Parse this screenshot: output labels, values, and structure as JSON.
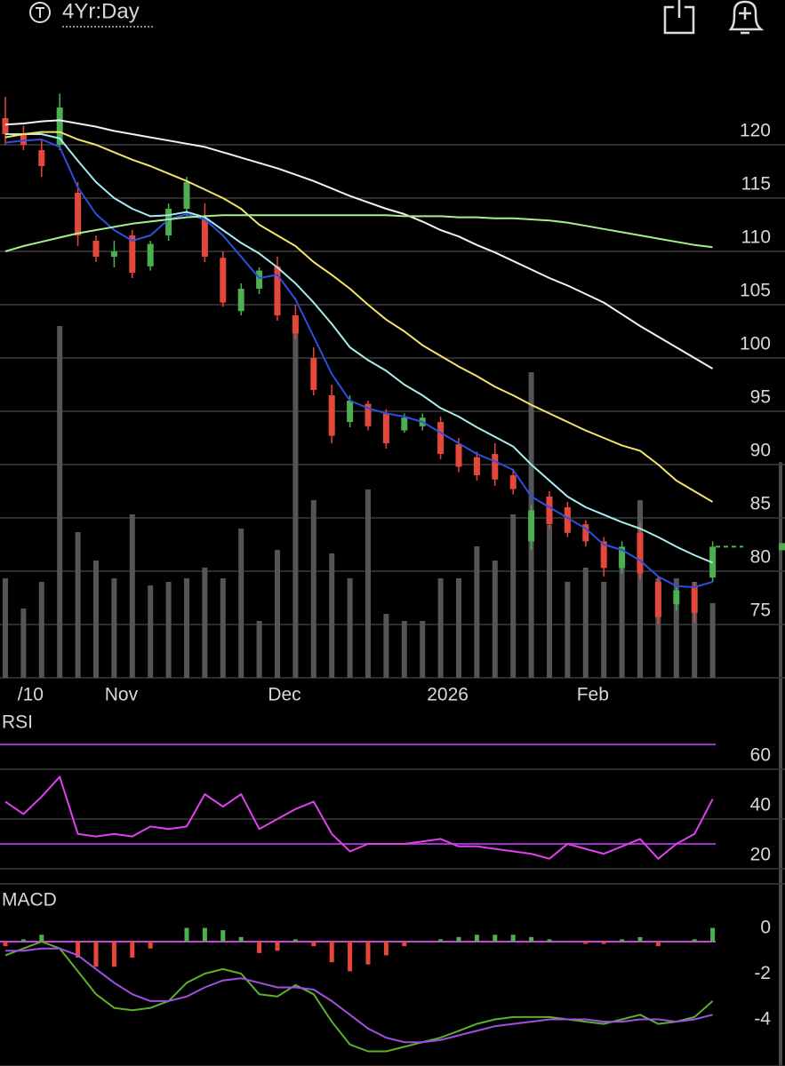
{
  "header": {
    "title": "4Yr:Day"
  },
  "chart_data": [
    {
      "type": "candlestick",
      "categories": [
        null,
        "/10",
        null,
        null,
        null,
        null,
        "Nov",
        null,
        null,
        null,
        null,
        null,
        null,
        null,
        null,
        "Dec",
        null,
        null,
        null,
        null,
        null,
        null,
        null,
        null,
        "2026",
        null,
        null,
        null,
        null,
        null,
        null,
        null,
        "Feb",
        null,
        null,
        null,
        null,
        null,
        null,
        null
      ],
      "open": [
        122.5,
        121,
        119.5,
        120,
        115.5,
        111,
        109.5,
        111.5,
        108.6,
        111.5,
        114,
        113,
        109.4,
        104.4,
        106.5,
        108.6,
        104,
        100,
        96.5,
        94,
        95.7,
        94.8,
        93.2,
        93.6,
        94,
        91.9,
        90.7,
        91,
        89,
        82.8,
        87,
        86,
        84.4,
        82.8,
        80.3,
        83.6,
        79,
        76.9,
        78.6,
        79.4
      ],
      "high": [
        124.5,
        121.8,
        120.5,
        124.8,
        116.5,
        111.5,
        111,
        112,
        111,
        114.5,
        117,
        114.5,
        110,
        107,
        108.5,
        109.5,
        105,
        101,
        97.5,
        96.5,
        96,
        95.2,
        94.8,
        94.8,
        94.5,
        92.5,
        91.2,
        92,
        89.6,
        86.2,
        87.5,
        86.5,
        84.8,
        83.2,
        82.8,
        84.5,
        79.5,
        78.5,
        79,
        82.8
      ],
      "low": [
        120,
        119.5,
        117,
        119.5,
        110.5,
        109,
        108.5,
        107.5,
        108.2,
        111,
        113.3,
        109,
        104.8,
        104,
        106,
        103.5,
        101.8,
        96.5,
        92,
        93.5,
        93.2,
        91.5,
        93,
        93.2,
        90.5,
        89.3,
        88.5,
        88,
        87.2,
        82,
        84,
        83.2,
        82.3,
        79.5,
        79.8,
        79.2,
        75,
        76.3,
        75.2,
        79
      ],
      "close": [
        121,
        120,
        118,
        123.5,
        111.5,
        109.5,
        110,
        108,
        110.7,
        114,
        116.5,
        109.5,
        105.2,
        106.5,
        108.2,
        104,
        102.3,
        97,
        92.7,
        96,
        93.6,
        92,
        94.4,
        94.4,
        91,
        89.8,
        89,
        88.6,
        87.7,
        85.7,
        84.4,
        83.6,
        82.8,
        80.3,
        82.3,
        79.8,
        75.7,
        78.2,
        76.1,
        82.3
      ],
      "up_color": "#4caf50",
      "down_color": "#e5473b",
      "volume": [
        28,
        19.5,
        27,
        99,
        41,
        33,
        28,
        46,
        26,
        27,
        28,
        31,
        28,
        42,
        16,
        36,
        98,
        50,
        35,
        28,
        53,
        18,
        16,
        16,
        28,
        28,
        37,
        33,
        46,
        86,
        43,
        27,
        31,
        27,
        31,
        50,
        28,
        28,
        27,
        21
      ],
      "volume_color": "#555555",
      "vlim": [
        0,
        100
      ],
      "series": [
        {
          "color": "#2f4fe0",
          "values": [
            120.2,
            120.4,
            120.5,
            119.8,
            116,
            113.5,
            112,
            111,
            111.5,
            113,
            113.5,
            113,
            111.5,
            109.5,
            107.5,
            107.8,
            105.5,
            102,
            98.5,
            96,
            95.3,
            94.8,
            94.5,
            94,
            93,
            92,
            91,
            90.3,
            89.5,
            87,
            86,
            85,
            84,
            82.5,
            82,
            81,
            79.5,
            78.6,
            78.5,
            79
          ]
        },
        {
          "color": "#a8ecf0",
          "values": [
            121,
            121,
            121,
            120.6,
            118.5,
            116.5,
            115,
            114,
            113.3,
            113.4,
            113.7,
            113.2,
            112,
            110.8,
            109.8,
            108.5,
            107,
            105.2,
            103.2,
            101,
            99.8,
            98.8,
            97.5,
            96.5,
            95.3,
            94.5,
            93.5,
            92.6,
            91.7,
            90,
            88.5,
            87,
            86,
            85.3,
            84.6,
            84,
            83.2,
            82.3,
            81.5,
            80.8
          ]
        },
        {
          "color": "#f3e36a",
          "values": [
            120.7,
            121,
            121.2,
            121.2,
            120.5,
            120,
            119.3,
            118.6,
            118,
            117.3,
            116.6,
            115.8,
            115,
            114,
            112.5,
            111.5,
            110.5,
            109,
            107.8,
            106.5,
            105,
            103.6,
            102.5,
            101.2,
            100.2,
            99.2,
            98.3,
            97.3,
            96.5,
            95.6,
            94.8,
            94,
            93.2,
            92.5,
            91.8,
            91.3,
            90,
            88.5,
            87.5,
            86.5
          ]
        },
        {
          "color": "#f2f2f2",
          "values": [
            121.9,
            122,
            122.2,
            122.3,
            122,
            121.7,
            121.3,
            121,
            120.7,
            120.4,
            120.1,
            119.8,
            119.3,
            118.8,
            118.3,
            117.8,
            117.2,
            116.6,
            115.9,
            115.2,
            114.6,
            114,
            113.5,
            112.8,
            112,
            111.4,
            110.6,
            109.9,
            109.1,
            108.3,
            107.5,
            106.8,
            106,
            105.2,
            104.1,
            103,
            102,
            101,
            100,
            99
          ]
        },
        {
          "color": "#a6ee8e",
          "values": [
            110,
            110.5,
            110.9,
            111.3,
            111.7,
            112,
            112.3,
            112.6,
            112.8,
            113,
            113.2,
            113.3,
            113.4,
            113.4,
            113.4,
            113.4,
            113.4,
            113.4,
            113.4,
            113.4,
            113.4,
            113.4,
            113.3,
            113.3,
            113.3,
            113.2,
            113.2,
            113.1,
            113.1,
            113,
            112.9,
            112.7,
            112.4,
            112.1,
            111.8,
            111.5,
            111.2,
            110.9,
            110.6,
            110.4
          ]
        }
      ],
      "ylim": [
        70,
        125
      ],
      "yticks": [
        75,
        80,
        85,
        90,
        95,
        100,
        105,
        110,
        115,
        120
      ],
      "grid": true
    },
    {
      "type": "line",
      "title": "RSI",
      "series": [
        {
          "color": "#e040f0",
          "values": [
            47,
            42,
            49,
            57,
            34,
            33,
            34,
            33,
            37,
            36,
            37,
            50,
            45,
            50,
            36,
            40,
            44,
            47,
            34,
            27,
            30,
            30,
            30,
            31,
            32,
            29,
            29,
            28,
            27,
            26,
            24,
            30,
            28,
            26,
            29,
            32,
            24,
            30,
            34,
            48
          ]
        }
      ],
      "hlines": [
        70,
        30
      ],
      "hline_color": "#a030c8",
      "ylim": [
        13.9,
        83.6
      ],
      "yticks": [
        60,
        40,
        20
      ],
      "grid": true
    },
    {
      "type": "macd",
      "title": "MACD",
      "series": [
        {
          "color": "#5cb030",
          "values": [
            -0.6,
            -0.3,
            0,
            -0.3,
            -1.3,
            -2.3,
            -2.9,
            -3,
            -2.9,
            -2.6,
            -1.8,
            -1.4,
            -1.2,
            -1.4,
            -2.3,
            -2.4,
            -1.9,
            -2.3,
            -3.5,
            -4.5,
            -4.8,
            -4.8,
            -4.6,
            -4.4,
            -4.2,
            -3.9,
            -3.6,
            -3.4,
            -3.3,
            -3.3,
            -3.3,
            -3.4,
            -3.5,
            -3.6,
            -3.4,
            -3.2,
            -3.6,
            -3.5,
            -3.3,
            -2.6
          ]
        },
        {
          "color": "#a050e0",
          "values": [
            -0.4,
            -0.4,
            -0.3,
            -0.3,
            -0.6,
            -1.2,
            -1.8,
            -2.3,
            -2.6,
            -2.6,
            -2.4,
            -2,
            -1.7,
            -1.6,
            -1.8,
            -2,
            -2,
            -2.1,
            -2.6,
            -3.2,
            -3.8,
            -4.2,
            -4.4,
            -4.4,
            -4.3,
            -4.1,
            -3.9,
            -3.7,
            -3.6,
            -3.5,
            -3.4,
            -3.4,
            -3.4,
            -3.5,
            -3.5,
            -3.4,
            -3.4,
            -3.5,
            -3.4,
            -3.2
          ]
        }
      ],
      "histogram": [
        -0.2,
        0.1,
        0.3,
        0,
        -0.7,
        -1.1,
        -1.1,
        -0.7,
        -0.3,
        0,
        0.6,
        0.6,
        0.5,
        0.2,
        -0.5,
        -0.4,
        0.1,
        -0.2,
        -0.9,
        -1.3,
        -1,
        -0.6,
        -0.2,
        0,
        0.1,
        0.2,
        0.3,
        0.3,
        0.3,
        0.2,
        0.1,
        0,
        -0.1,
        -0.1,
        0.1,
        0.2,
        -0.2,
        0,
        0.1,
        0.6
      ],
      "up_color": "#4caf50",
      "down_color": "#e5473b",
      "hlines": [
        0
      ],
      "hline_color": "#d040e0",
      "ylim": [
        -5.44,
        2.33
      ],
      "yticks": [
        0,
        -2,
        -4
      ],
      "grid": false
    }
  ]
}
